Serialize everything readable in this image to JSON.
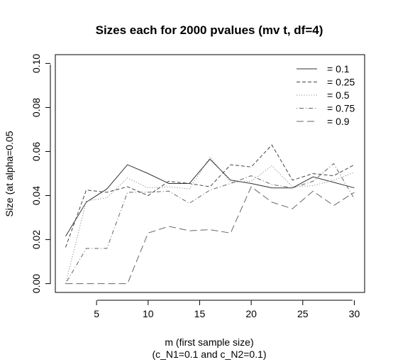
{
  "chart_data": {
    "type": "line",
    "title": "Sizes each for 2000 pvalues (mv t, df=4)",
    "xlabel_lines": [
      "m (first sample size)",
      "(c_N1=0.1 and c_N2=0.1)"
    ],
    "ylabel": "Size (at alpha=0.05",
    "xlim": [
      1,
      31
    ],
    "ylim": [
      -0.004,
      0.104
    ],
    "x_ticks": [
      5,
      10,
      15,
      20,
      25,
      30
    ],
    "x_tick_labels": [
      "5",
      "10",
      "15",
      "20",
      "25",
      "30"
    ],
    "y_ticks": [
      0,
      0.02,
      0.04,
      0.06,
      0.08,
      0.1
    ],
    "y_tick_labels": [
      "0.00",
      "0.02",
      "0.04",
      "0.06",
      "0.08",
      "0.10"
    ],
    "grid": false,
    "legend_position": "top-right",
    "x": [
      2,
      4,
      6,
      8,
      10,
      12,
      14,
      16,
      18,
      20,
      22,
      24,
      26,
      28,
      30
    ],
    "series": [
      {
        "name": "= 0.1",
        "style": "solid",
        "color": "#333333",
        "values": [
          0.0215,
          0.037,
          0.043,
          0.054,
          0.05,
          0.0455,
          0.0455,
          0.0565,
          0.047,
          0.0455,
          0.0435,
          0.0435,
          0.0485,
          0.046,
          0.0435
        ]
      },
      {
        "name": "= 0.25",
        "style": "dashed",
        "color": "#444444",
        "values": [
          0.0165,
          0.0425,
          0.0415,
          0.044,
          0.04,
          0.0465,
          0.0455,
          0.044,
          0.054,
          0.053,
          0.063,
          0.047,
          0.05,
          0.049,
          0.054
        ]
      },
      {
        "name": "= 0.5",
        "style": "dotted",
        "color": "#777777",
        "values": [
          0.0,
          0.0375,
          0.039,
          0.048,
          0.0435,
          0.044,
          0.043,
          0.0575,
          0.046,
          0.0465,
          0.0535,
          0.044,
          0.0445,
          0.047,
          0.0505
        ]
      },
      {
        "name": "= 0.75",
        "style": "dotdash",
        "color": "#666666",
        "values": [
          0.0,
          0.016,
          0.016,
          0.0415,
          0.0415,
          0.042,
          0.0365,
          0.0425,
          0.0455,
          0.049,
          0.045,
          0.0435,
          0.0465,
          0.0545,
          0.0385
        ]
      },
      {
        "name": "= 0.9",
        "style": "longdash",
        "color": "#666666",
        "values": [
          0.0,
          0.0,
          0.0,
          0.0,
          0.023,
          0.026,
          0.024,
          0.0245,
          0.023,
          0.044,
          0.037,
          0.034,
          0.042,
          0.0355,
          0.0415
        ]
      }
    ]
  }
}
